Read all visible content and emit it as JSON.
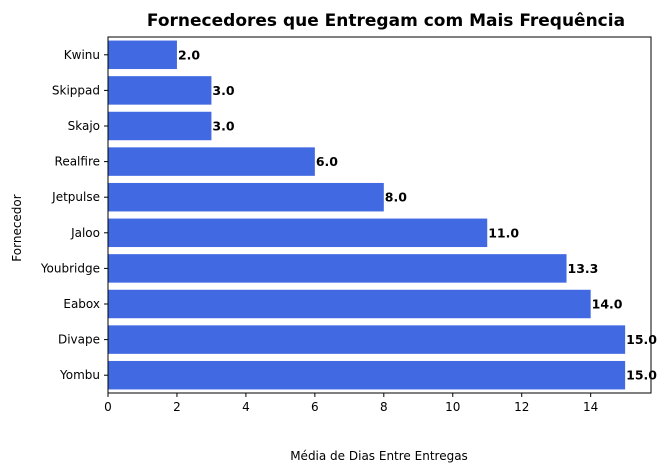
{
  "chart_data": {
    "type": "bar",
    "orientation": "horizontal",
    "title": "Fornecedores que Entregam com Mais Frequência",
    "xlabel": "Média de Dias Entre Entregas",
    "ylabel": "Fornecedor",
    "categories": [
      "Kwinu",
      "Skippad",
      "Skajo",
      "Realfire",
      "Jetpulse",
      "Jaloo",
      "Youbridge",
      "Eabox",
      "Divape",
      "Yombu"
    ],
    "values": [
      2.0,
      3.0,
      3.0,
      6.0,
      8.0,
      11.0,
      13.3,
      14.0,
      15.0,
      15.0
    ],
    "value_labels": [
      "2.0",
      "3.0",
      "3.0",
      "6.0",
      "8.0",
      "11.0",
      "13.3",
      "14.0",
      "15.0",
      "15.0"
    ],
    "xlim": [
      0,
      15.75
    ],
    "xticks": [
      "0",
      "2",
      "4",
      "6",
      "8",
      "10",
      "12",
      "14"
    ],
    "grid": false,
    "bar_color": "#4169e1"
  }
}
